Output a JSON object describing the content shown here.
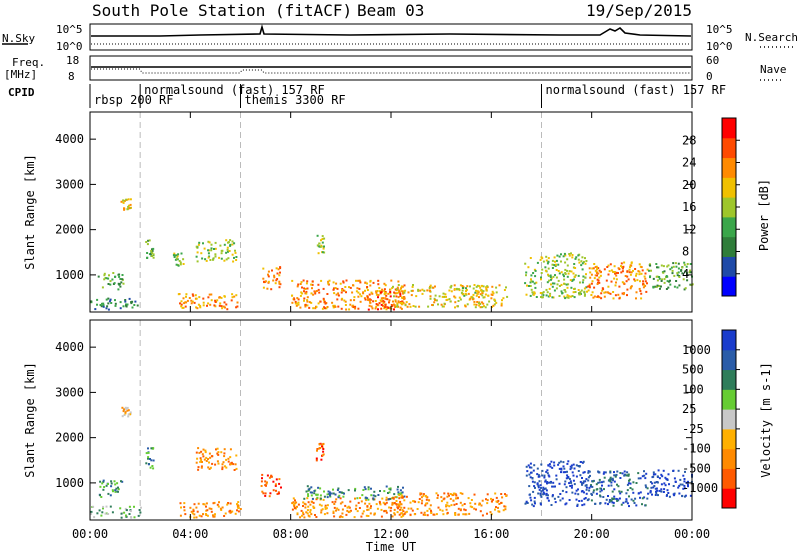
{
  "header": {
    "station": "South Pole Station (fitACF)",
    "beam": "Beam 03",
    "date": "19/Sep/2015"
  },
  "top_panels": {
    "nsky_label": "N.Sky",
    "nsky_ticks": [
      "10^5",
      "10^0"
    ],
    "nsearch_label": "N.Search",
    "nsearch_ticks": [
      "10^5",
      "10^0"
    ],
    "freq_label_1": "Freq.",
    "freq_label_2": "[MHz]",
    "freq_ticks": [
      "18",
      "8"
    ],
    "nave_label": "Nave",
    "nave_ticks": [
      "60",
      "0"
    ],
    "cpid_label": "CPID"
  },
  "cpid_segments": [
    {
      "label": "rbsp 200 RF",
      "start_hour": 0,
      "row": 2
    },
    {
      "label": "normalsound (fast) 157 RF",
      "start_hour": 2,
      "row": 1
    },
    {
      "label": "themis 3300 RF",
      "start_hour": 6,
      "row": 2
    },
    {
      "label": "normalsound (fast) 157 RF",
      "start_hour": 18,
      "row": 1
    }
  ],
  "colors": {
    "power_scale": [
      "#0000ff",
      "#1f4aa8",
      "#2f7d3a",
      "#3aa64a",
      "#9ec62b",
      "#f0c000",
      "#ff8a00",
      "#ff4a00",
      "#ff0000"
    ],
    "velocity_scale": [
      "#ff0000",
      "#ff5a00",
      "#ff8a00",
      "#ffb000",
      "#c8c8c8",
      "#66cc33",
      "#2f7d5a",
      "#2a5ca8",
      "#1a3ccc"
    ]
  },
  "chart_data": [
    {
      "type": "heatmap",
      "title": "",
      "xlabel": "Time UT",
      "ylabel": "Slant Range [km]",
      "xlim": [
        0,
        24
      ],
      "ylim": [
        180,
        4600
      ],
      "x_ticks": [
        "00:00",
        "04:00",
        "08:00",
        "12:00",
        "16:00",
        "20:00",
        "00:00"
      ],
      "y_ticks": [
        "1000",
        "2000",
        "3000",
        "4000"
      ],
      "colorbar": {
        "label": "Power [dB]",
        "ticks": [
          "4",
          "8",
          "12",
          "16",
          "20",
          "24",
          "28"
        ],
        "range": [
          0,
          30
        ]
      },
      "grid": false,
      "mode_change_hours": [
        2,
        6,
        18
      ],
      "scatter_regions": [
        {
          "t": [
            0.3,
            1.3
          ],
          "r": [
            700,
            1100
          ],
          "value": 10
        },
        {
          "t": [
            0.0,
            2.0
          ],
          "r": [
            250,
            500
          ],
          "value": 8
        },
        {
          "t": [
            1.2,
            1.6
          ],
          "r": [
            2450,
            2700
          ],
          "value": 18
        },
        {
          "t": [
            2.2,
            2.5
          ],
          "r": [
            1300,
            1800
          ],
          "value": 12
        },
        {
          "t": [
            3.3,
            3.7
          ],
          "r": [
            1200,
            1500
          ],
          "value": 14
        },
        {
          "t": [
            4.2,
            5.8
          ],
          "r": [
            1300,
            1800
          ],
          "value": 16
        },
        {
          "t": [
            6.8,
            7.6
          ],
          "r": [
            700,
            1200
          ],
          "value": 24
        },
        {
          "t": [
            3.5,
            6.0
          ],
          "r": [
            250,
            600
          ],
          "value": 22
        },
        {
          "t": [
            9.0,
            9.3
          ],
          "r": [
            1500,
            1900
          ],
          "value": 14
        },
        {
          "t": [
            8.0,
            12.5
          ],
          "r": [
            250,
            900
          ],
          "value": 22
        },
        {
          "t": [
            11.0,
            12.5
          ],
          "r": [
            250,
            650
          ],
          "value": 28
        },
        {
          "t": [
            12.0,
            16.6
          ],
          "r": [
            300,
            800
          ],
          "value": 20
        },
        {
          "t": [
            14.5,
            15.8
          ],
          "r": [
            550,
            800
          ],
          "value": 14
        },
        {
          "t": [
            17.3,
            19.8
          ],
          "r": [
            500,
            1500
          ],
          "value": 14
        },
        {
          "t": [
            19.8,
            22.2
          ],
          "r": [
            500,
            1300
          ],
          "value": 22
        },
        {
          "t": [
            22.2,
            24.0
          ],
          "r": [
            700,
            1300
          ],
          "value": 10
        }
      ]
    },
    {
      "type": "heatmap",
      "title": "",
      "xlabel": "Time UT",
      "ylabel": "Slant Range [km]",
      "xlim": [
        0,
        24
      ],
      "ylim": [
        180,
        4600
      ],
      "x_ticks": [
        "00:00",
        "04:00",
        "08:00",
        "12:00",
        "16:00",
        "20:00",
        "00:00"
      ],
      "y_ticks": [
        "1000",
        "2000",
        "3000",
        "4000"
      ],
      "colorbar": {
        "label": "Velocity [m s-1]",
        "ticks": [
          "1000",
          "500",
          "100",
          "25",
          "-25",
          "-100",
          "-500",
          "-1000"
        ],
        "range": [
          -1200,
          1200
        ]
      },
      "grid": false,
      "mode_change_hours": [
        2,
        6,
        18
      ],
      "scatter_regions": [
        {
          "t": [
            0.3,
            1.3
          ],
          "r": [
            700,
            1100
          ],
          "value": 150
        },
        {
          "t": [
            0.0,
            2.0
          ],
          "r": [
            250,
            500
          ],
          "value": 50
        },
        {
          "t": [
            1.2,
            1.6
          ],
          "r": [
            2450,
            2700
          ],
          "value": -50
        },
        {
          "t": [
            2.2,
            2.5
          ],
          "r": [
            1300,
            1800
          ],
          "value": 200
        },
        {
          "t": [
            4.2,
            5.8
          ],
          "r": [
            1300,
            1800
          ],
          "value": -200
        },
        {
          "t": [
            6.8,
            7.6
          ],
          "r": [
            700,
            1200
          ],
          "value": -600
        },
        {
          "t": [
            3.5,
            6.0
          ],
          "r": [
            250,
            600
          ],
          "value": -150
        },
        {
          "t": [
            9.0,
            9.3
          ],
          "r": [
            1500,
            1900
          ],
          "value": -500
        },
        {
          "t": [
            8.0,
            12.5
          ],
          "r": [
            250,
            700
          ],
          "value": -200
        },
        {
          "t": [
            8.5,
            12.5
          ],
          "r": [
            650,
            950
          ],
          "value": 300
        },
        {
          "t": [
            12.0,
            16.6
          ],
          "r": [
            300,
            800
          ],
          "value": -200
        },
        {
          "t": [
            17.3,
            19.8
          ],
          "r": [
            500,
            1500
          ],
          "value": 800
        },
        {
          "t": [
            19.8,
            22.2
          ],
          "r": [
            500,
            1300
          ],
          "value": 600
        },
        {
          "t": [
            22.2,
            24.0
          ],
          "r": [
            700,
            1300
          ],
          "value": 900
        }
      ]
    }
  ]
}
